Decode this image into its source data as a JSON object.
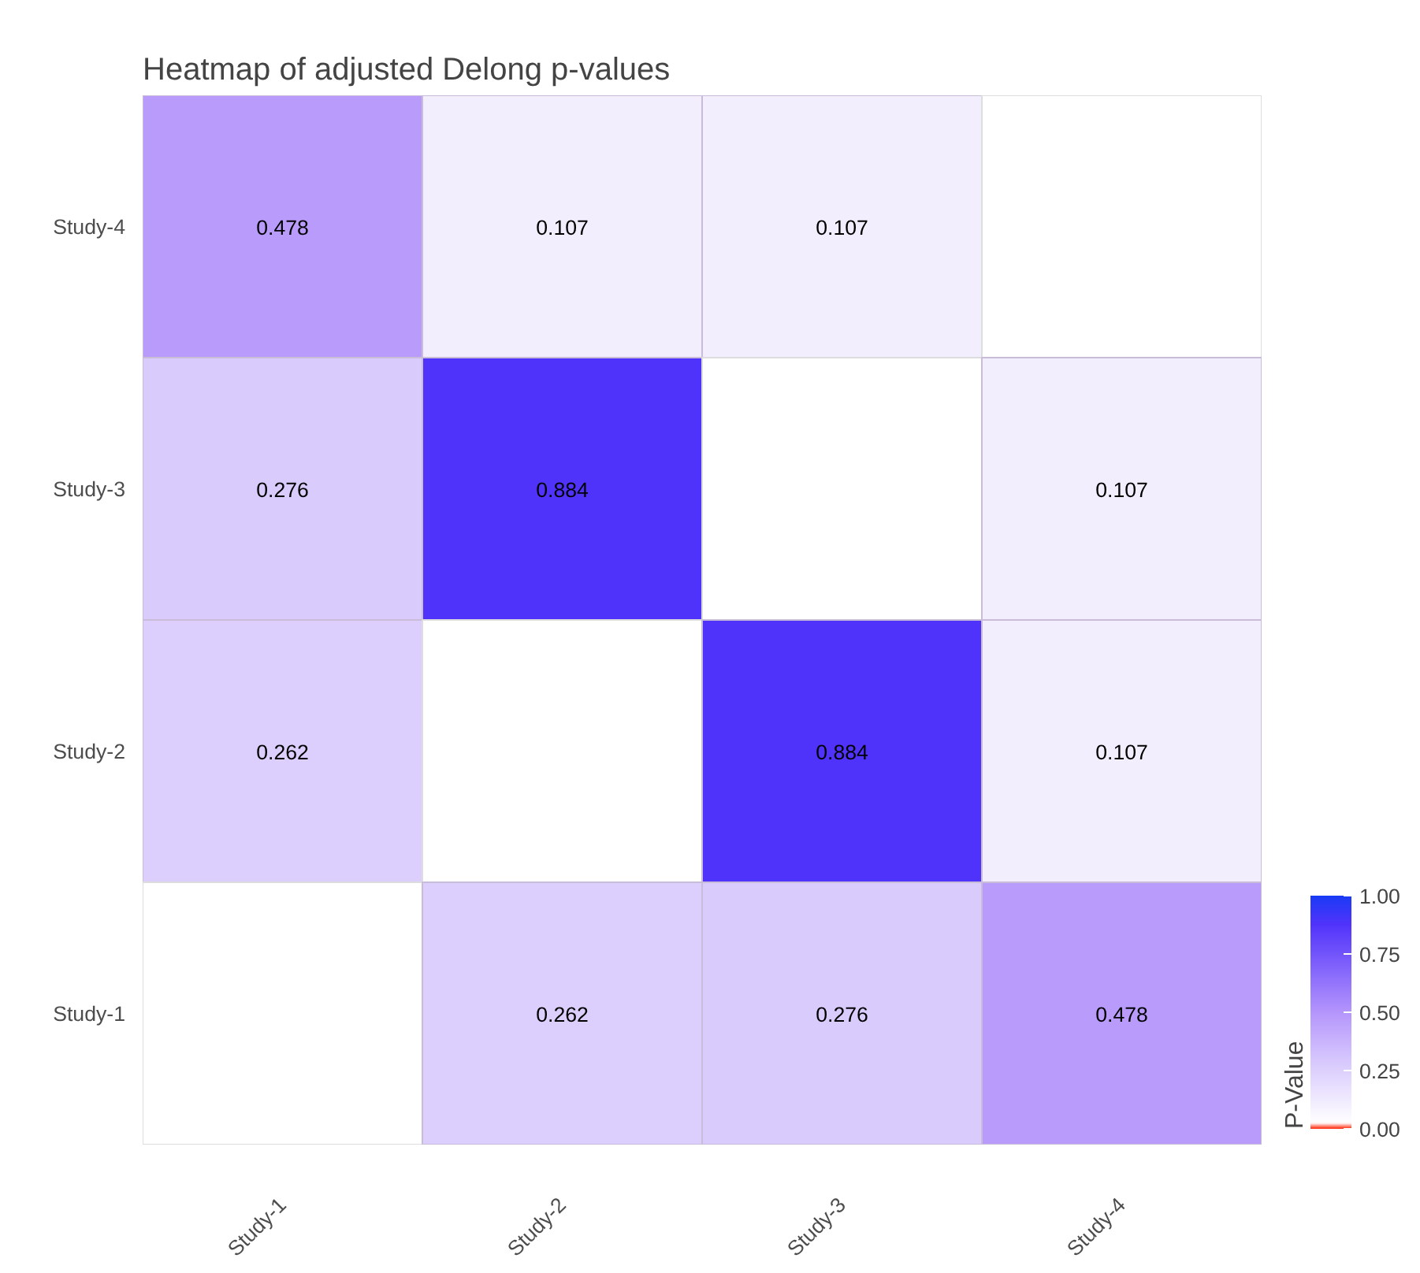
{
  "chart_data": {
    "type": "heatmap",
    "title": "Heatmap of adjusted Delong p-values",
    "legend_title": "P-Value",
    "categories": [
      "Study-1",
      "Study-2",
      "Study-3",
      "Study-4"
    ],
    "y_categories": [
      "Study-4",
      "Study-3",
      "Study-2",
      "Study-1"
    ],
    "cells": [
      [
        0.478,
        0.107,
        0.107,
        null
      ],
      [
        0.276,
        0.884,
        null,
        0.107
      ],
      [
        0.262,
        null,
        0.884,
        0.107
      ],
      [
        null,
        0.262,
        0.276,
        0.478
      ]
    ],
    "clim": [
      0,
      1
    ],
    "cticks": [
      {
        "value": 0,
        "label": "0.00"
      },
      {
        "value": 0.25,
        "label": "0.25"
      },
      {
        "value": 0.5,
        "label": "0.50"
      },
      {
        "value": 0.75,
        "label": "0.75"
      },
      {
        "value": 1,
        "label": "1.00"
      }
    ],
    "data_labels": true
  }
}
